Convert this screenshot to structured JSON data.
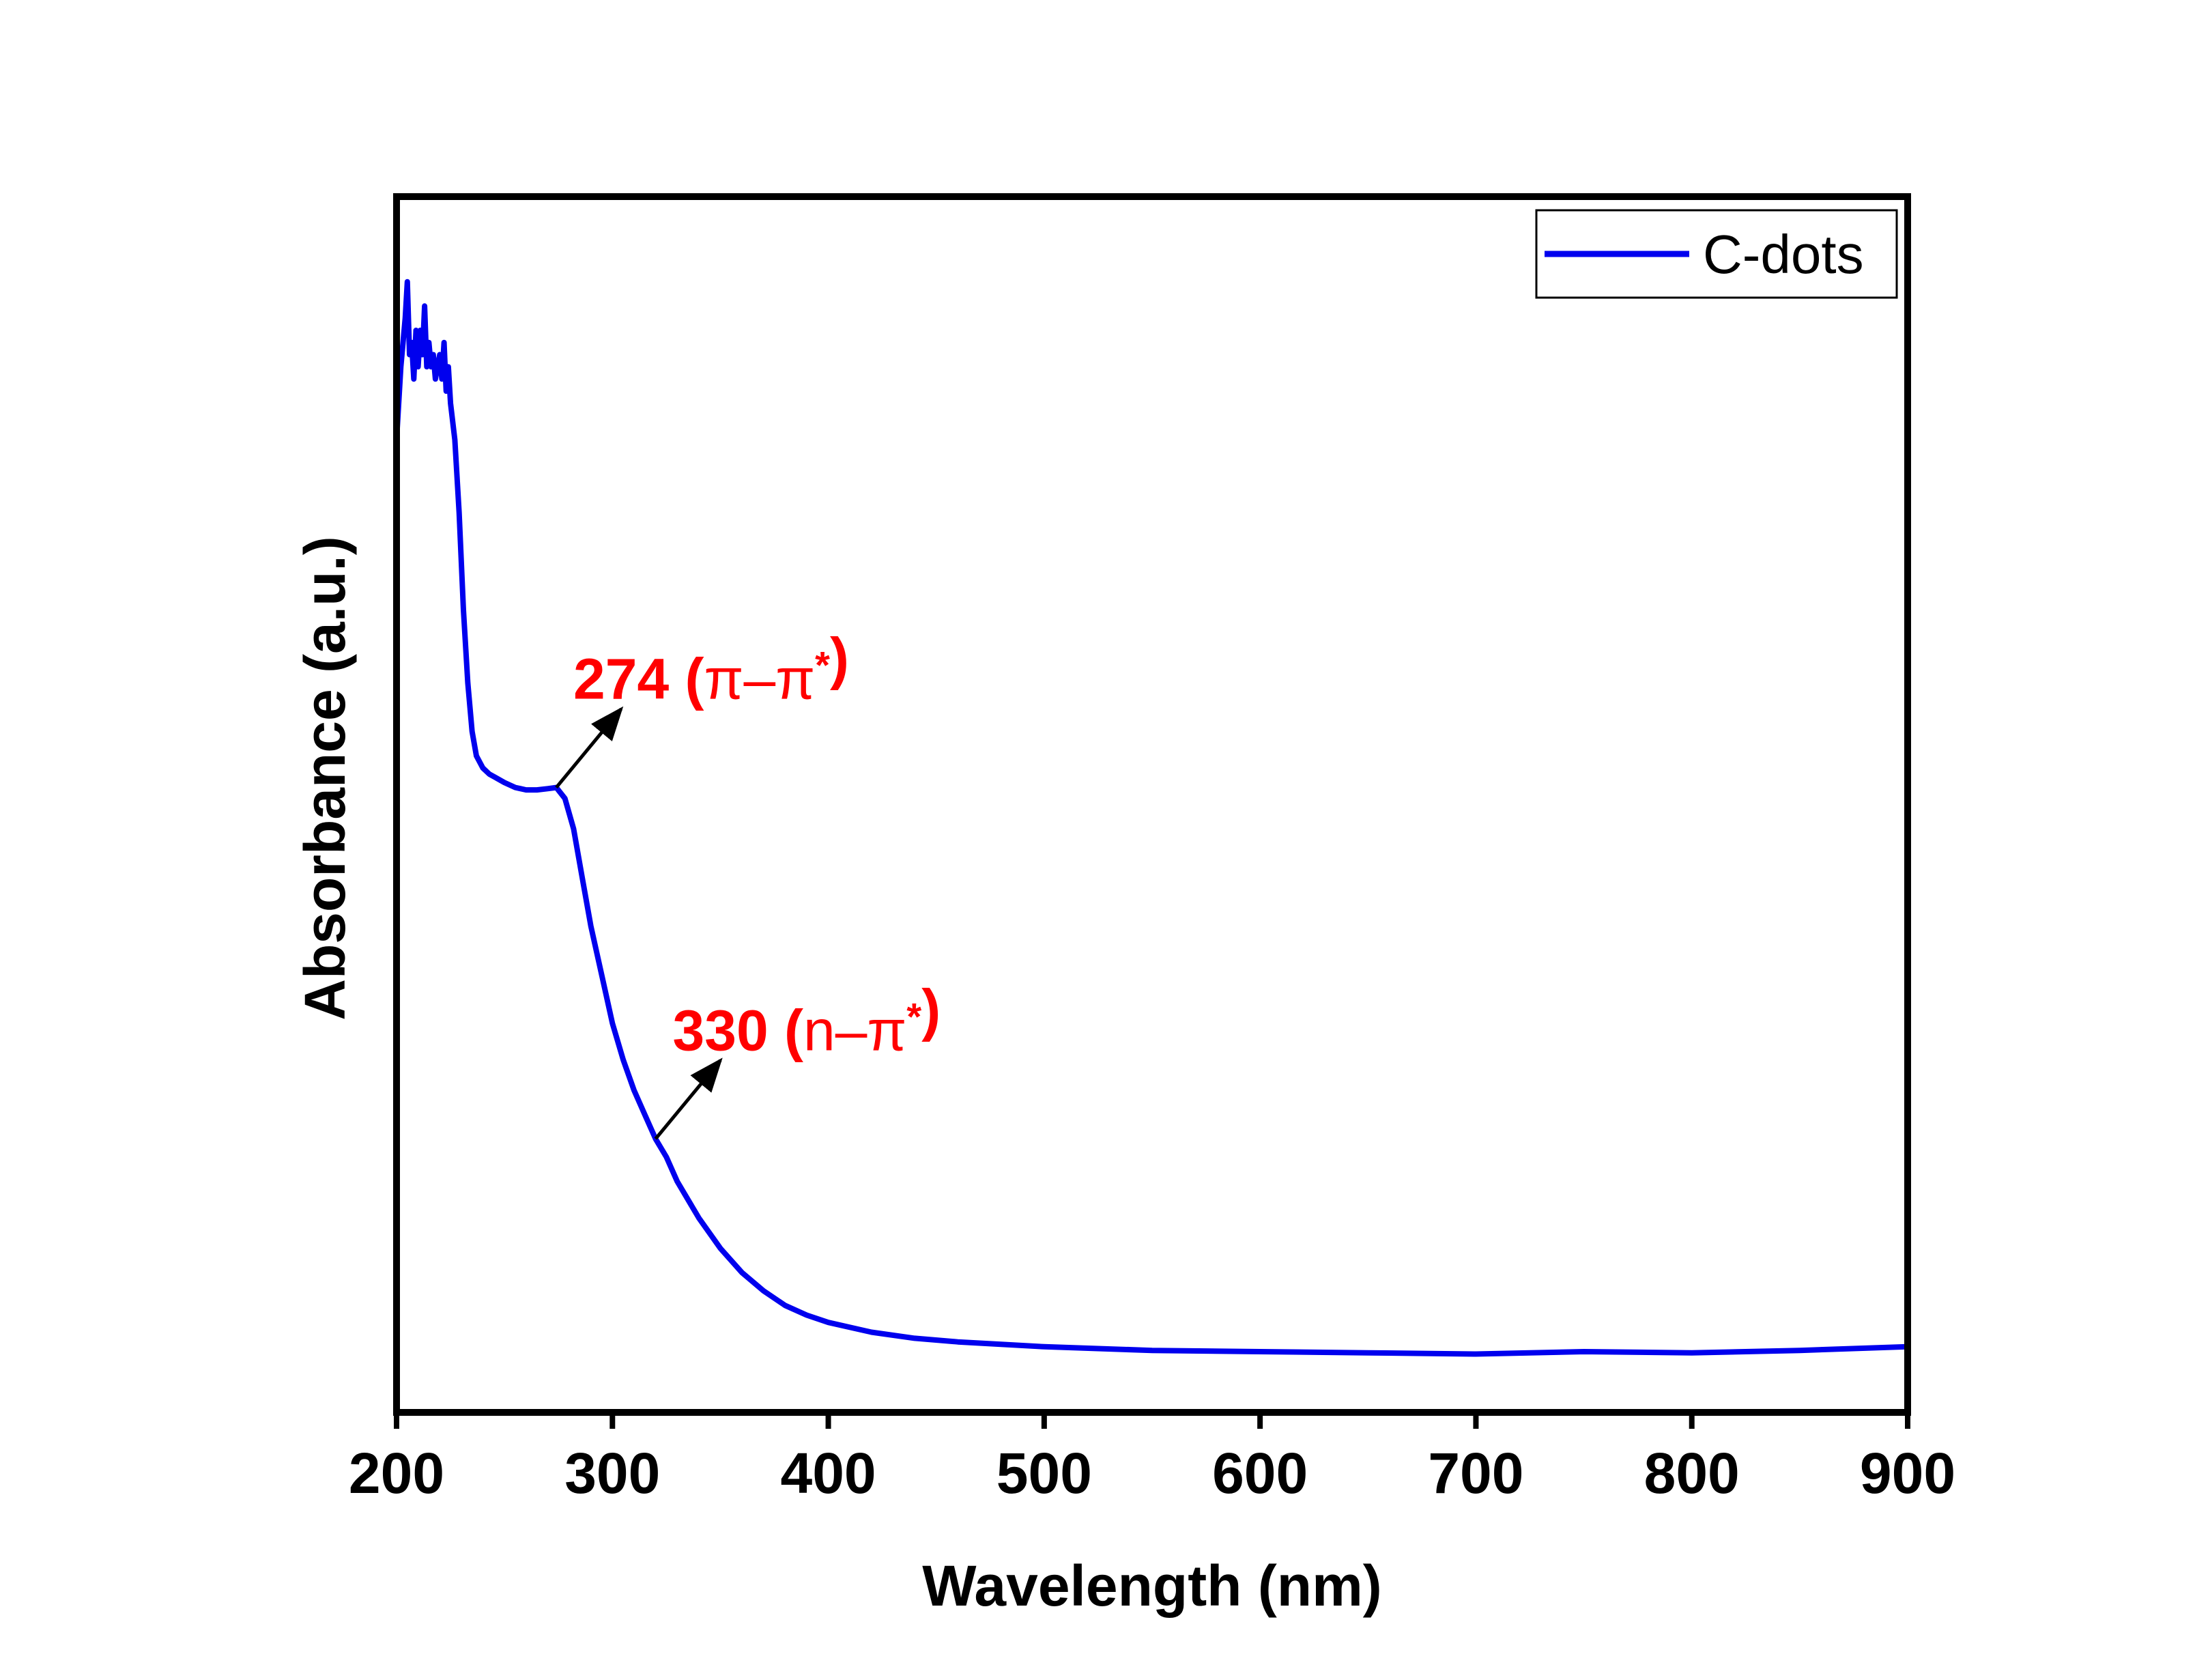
{
  "chart_data": {
    "type": "line",
    "title": "",
    "xlabel": "Wavelength (nm)",
    "ylabel": "Absorbance (a.u.)",
    "xlim": [
      200,
      900
    ],
    "ylim": [
      0,
      1
    ],
    "y_tick_labels_shown": false,
    "grid": false,
    "legend_position": "top-right",
    "x_ticks": [
      200,
      300,
      400,
      500,
      600,
      700,
      800,
      900
    ],
    "x_tick_labels": [
      "200",
      "300",
      "400",
      "500",
      "600",
      "700",
      "800",
      "900"
    ],
    "series": [
      {
        "name": "C-dots",
        "color": "#0000ee",
        "x": [
          200,
          202,
          204,
          205,
          206,
          207,
          208,
          209,
          210,
          211,
          212,
          213,
          214,
          215,
          216,
          217,
          218,
          219,
          220,
          221,
          222,
          223,
          224,
          225,
          227,
          229,
          231,
          233,
          235,
          237,
          240,
          243,
          246,
          250,
          255,
          260,
          265,
          270,
          274,
          278,
          282,
          286,
          290,
          295,
          300,
          305,
          310,
          315,
          320,
          325,
          330,
          335,
          340,
          350,
          360,
          370,
          380,
          390,
          400,
          420,
          440,
          460,
          480,
          500,
          550,
          600,
          650,
          700,
          750,
          800,
          850,
          900
        ],
        "y": [
          0.8,
          0.86,
          0.9,
          0.93,
          0.87,
          0.88,
          0.85,
          0.89,
          0.86,
          0.89,
          0.87,
          0.91,
          0.86,
          0.88,
          0.86,
          0.87,
          0.85,
          0.86,
          0.87,
          0.85,
          0.88,
          0.84,
          0.86,
          0.83,
          0.8,
          0.74,
          0.66,
          0.6,
          0.56,
          0.54,
          0.53,
          0.525,
          0.522,
          0.518,
          0.514,
          0.512,
          0.512,
          0.513,
          0.514,
          0.505,
          0.48,
          0.44,
          0.4,
          0.36,
          0.32,
          0.29,
          0.265,
          0.245,
          0.225,
          0.21,
          0.19,
          0.175,
          0.16,
          0.135,
          0.115,
          0.1,
          0.088,
          0.08,
          0.074,
          0.066,
          0.061,
          0.058,
          0.056,
          0.054,
          0.051,
          0.05,
          0.049,
          0.048,
          0.05,
          0.049,
          0.051,
          0.054
        ]
      }
    ],
    "annotations": [
      {
        "number": "274",
        "paren_open": " (",
        "transition": "π–π",
        "star": "*",
        "paren_close": ")",
        "arrow_from": [
          274,
          0.514
        ],
        "color": "#ff0000"
      },
      {
        "number": "330",
        "paren_open": " (",
        "transition": "n–π",
        "star": "*",
        "paren_close": ")",
        "arrow_from": [
          320,
          0.225
        ],
        "color": "#ff0000"
      }
    ]
  }
}
